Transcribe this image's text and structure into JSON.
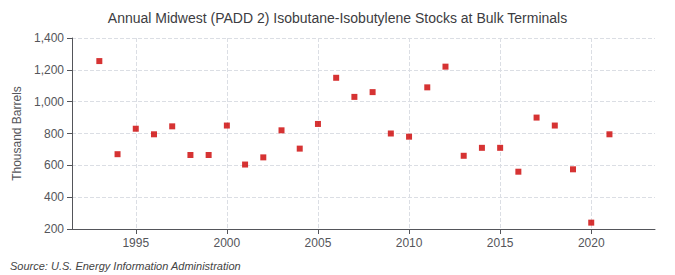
{
  "chart_data": {
    "type": "scatter",
    "title": "Annual Midwest (PADD 2) Isobutane-Isobutylene Stocks at Bulk Terminals",
    "ylabel": "Thousand Barrels",
    "annotations": [
      "Source: U.S. Energy Information Administration"
    ],
    "x": [
      1993,
      1994,
      1995,
      1996,
      1997,
      1998,
      1999,
      2000,
      2001,
      2002,
      2003,
      2004,
      2005,
      2006,
      2007,
      2008,
      2009,
      2010,
      2011,
      2012,
      2013,
      2014,
      2015,
      2016,
      2017,
      2018,
      2019,
      2020,
      2021
    ],
    "values": [
      1255,
      670,
      830,
      795,
      845,
      665,
      665,
      850,
      605,
      650,
      820,
      705,
      860,
      1150,
      1030,
      1060,
      800,
      780,
      1090,
      1220,
      660,
      710,
      710,
      560,
      900,
      850,
      575,
      240,
      795
    ],
    "color": "#cc0000",
    "marker": "square",
    "xlim": [
      1991.5,
      2023.5
    ],
    "xticks": [
      1995,
      2000,
      2005,
      2010,
      2015,
      2020
    ],
    "ylim": [
      200,
      1400
    ],
    "yticks": [
      200,
      400,
      600,
      800,
      {
        "value": 1000,
        "label": "1,000"
      },
      {
        "value": 1200,
        "label": "1,200"
      },
      {
        "value": 1400,
        "label": "1,400"
      }
    ],
    "grid": true
  }
}
